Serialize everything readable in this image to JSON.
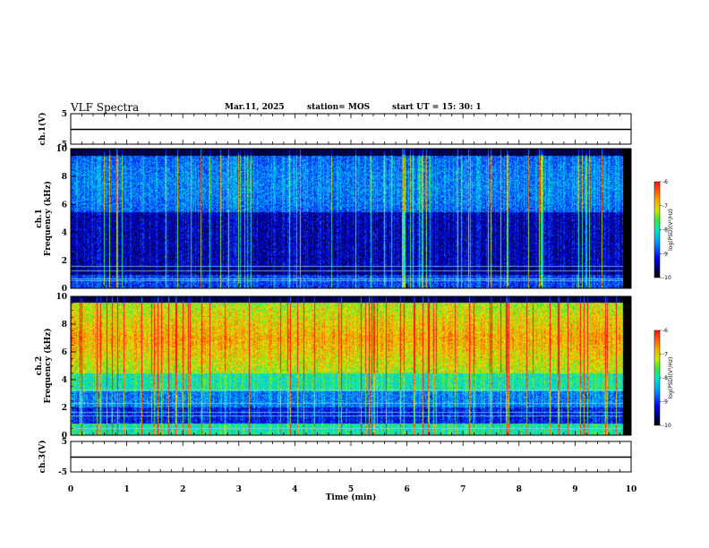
{
  "header": {
    "title": "VLF Spectra",
    "date": "Mar.11, 2025",
    "station": "station= MOS",
    "start_ut": "start UT =  15: 30: 1"
  },
  "chart_data": [
    {
      "type": "line",
      "panel": "ch1-waveform",
      "ylabel": "ch.1(V)",
      "ylim": [
        -5,
        5
      ],
      "y_ticks": [
        "5",
        "-5"
      ],
      "x": [
        0,
        10
      ],
      "values": [
        0,
        0
      ]
    },
    {
      "type": "heatmap",
      "panel": "ch1-spectrogram",
      "ylabel_lines": [
        "ch.1",
        "Frequency (kHz)"
      ],
      "ylim": [
        0,
        10
      ],
      "y_ticks": [
        "0",
        "2",
        "4",
        "6",
        "8",
        "10"
      ],
      "xlim": [
        0,
        10
      ],
      "colorbar": {
        "label": "log(PSD)(V²/Hz)",
        "range": [
          -10,
          -6
        ],
        "ticks": [
          "-6",
          "-7",
          "-8",
          "-9",
          "-10"
        ]
      }
    },
    {
      "type": "heatmap",
      "panel": "ch2-spectrogram",
      "ylabel_lines": [
        "ch.2",
        "Frequency (kHz)"
      ],
      "ylim": [
        0,
        10
      ],
      "y_ticks": [
        "0",
        "2",
        "4",
        "6",
        "8",
        "10"
      ],
      "xlim": [
        0,
        10
      ],
      "colorbar": {
        "label": "log(PSD)(V²/Hz)",
        "range": [
          -10,
          -6
        ],
        "ticks": [
          "-6",
          "-7",
          "-8",
          "-9",
          "-10"
        ]
      }
    },
    {
      "type": "line",
      "panel": "ch3-waveform",
      "ylabel": "ch.3(V)",
      "ylim": [
        -5,
        5
      ],
      "y_ticks": [
        "5",
        "-5"
      ],
      "x": [
        0,
        10
      ],
      "values": [
        0,
        0
      ]
    }
  ],
  "x_axis": {
    "label": "Time (min)",
    "range": [
      0,
      10
    ],
    "ticks": [
      "0",
      "1",
      "2",
      "3",
      "4",
      "5",
      "6",
      "7",
      "8",
      "9",
      "10"
    ]
  }
}
